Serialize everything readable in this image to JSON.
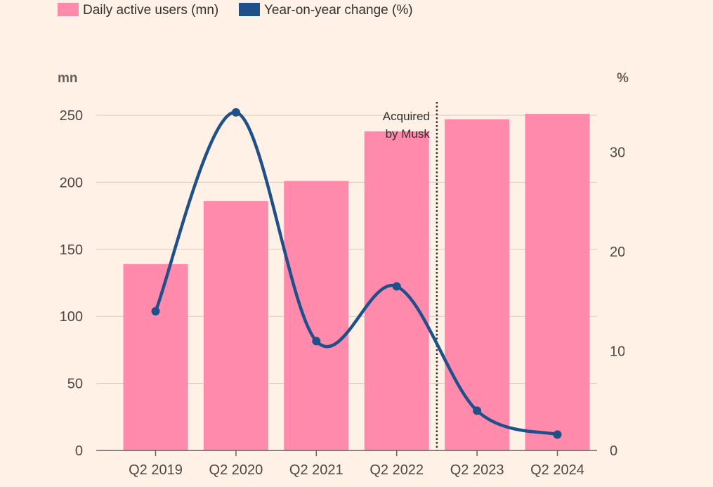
{
  "chart_data": {
    "type": "bar",
    "categories": [
      "Q2 2019",
      "Q2 2020",
      "Q2 2021",
      "Q2 2022",
      "Q2 2023",
      "Q2 2024"
    ],
    "series": [
      {
        "name": "Daily active users (mn)",
        "type": "bar",
        "axis": "left",
        "color": "#ff8aab",
        "values": [
          139,
          186,
          201,
          238,
          247,
          251
        ]
      },
      {
        "name": "Year-on-year change (%)",
        "type": "line",
        "axis": "right",
        "color": "#1f5089",
        "values": [
          14,
          34,
          11,
          16.5,
          4,
          1.6
        ]
      }
    ],
    "left_axis": {
      "unit": "mn",
      "ylim": [
        0,
        270
      ],
      "ticks": [
        0,
        50,
        100,
        150,
        200,
        250
      ]
    },
    "right_axis": {
      "unit": "%",
      "ylim": [
        0,
        35
      ],
      "ticks": [
        0,
        10,
        20,
        30
      ],
      "tick_labels": [
        "0",
        "10",
        "20",
        "30"
      ]
    },
    "annotation": {
      "lines": [
        "Acquired",
        "by Musk"
      ],
      "between": [
        "Q2 2022",
        "Q2 2023"
      ],
      "style": "dotted vertical line"
    },
    "legend_position": "top-left",
    "grid": true
  }
}
